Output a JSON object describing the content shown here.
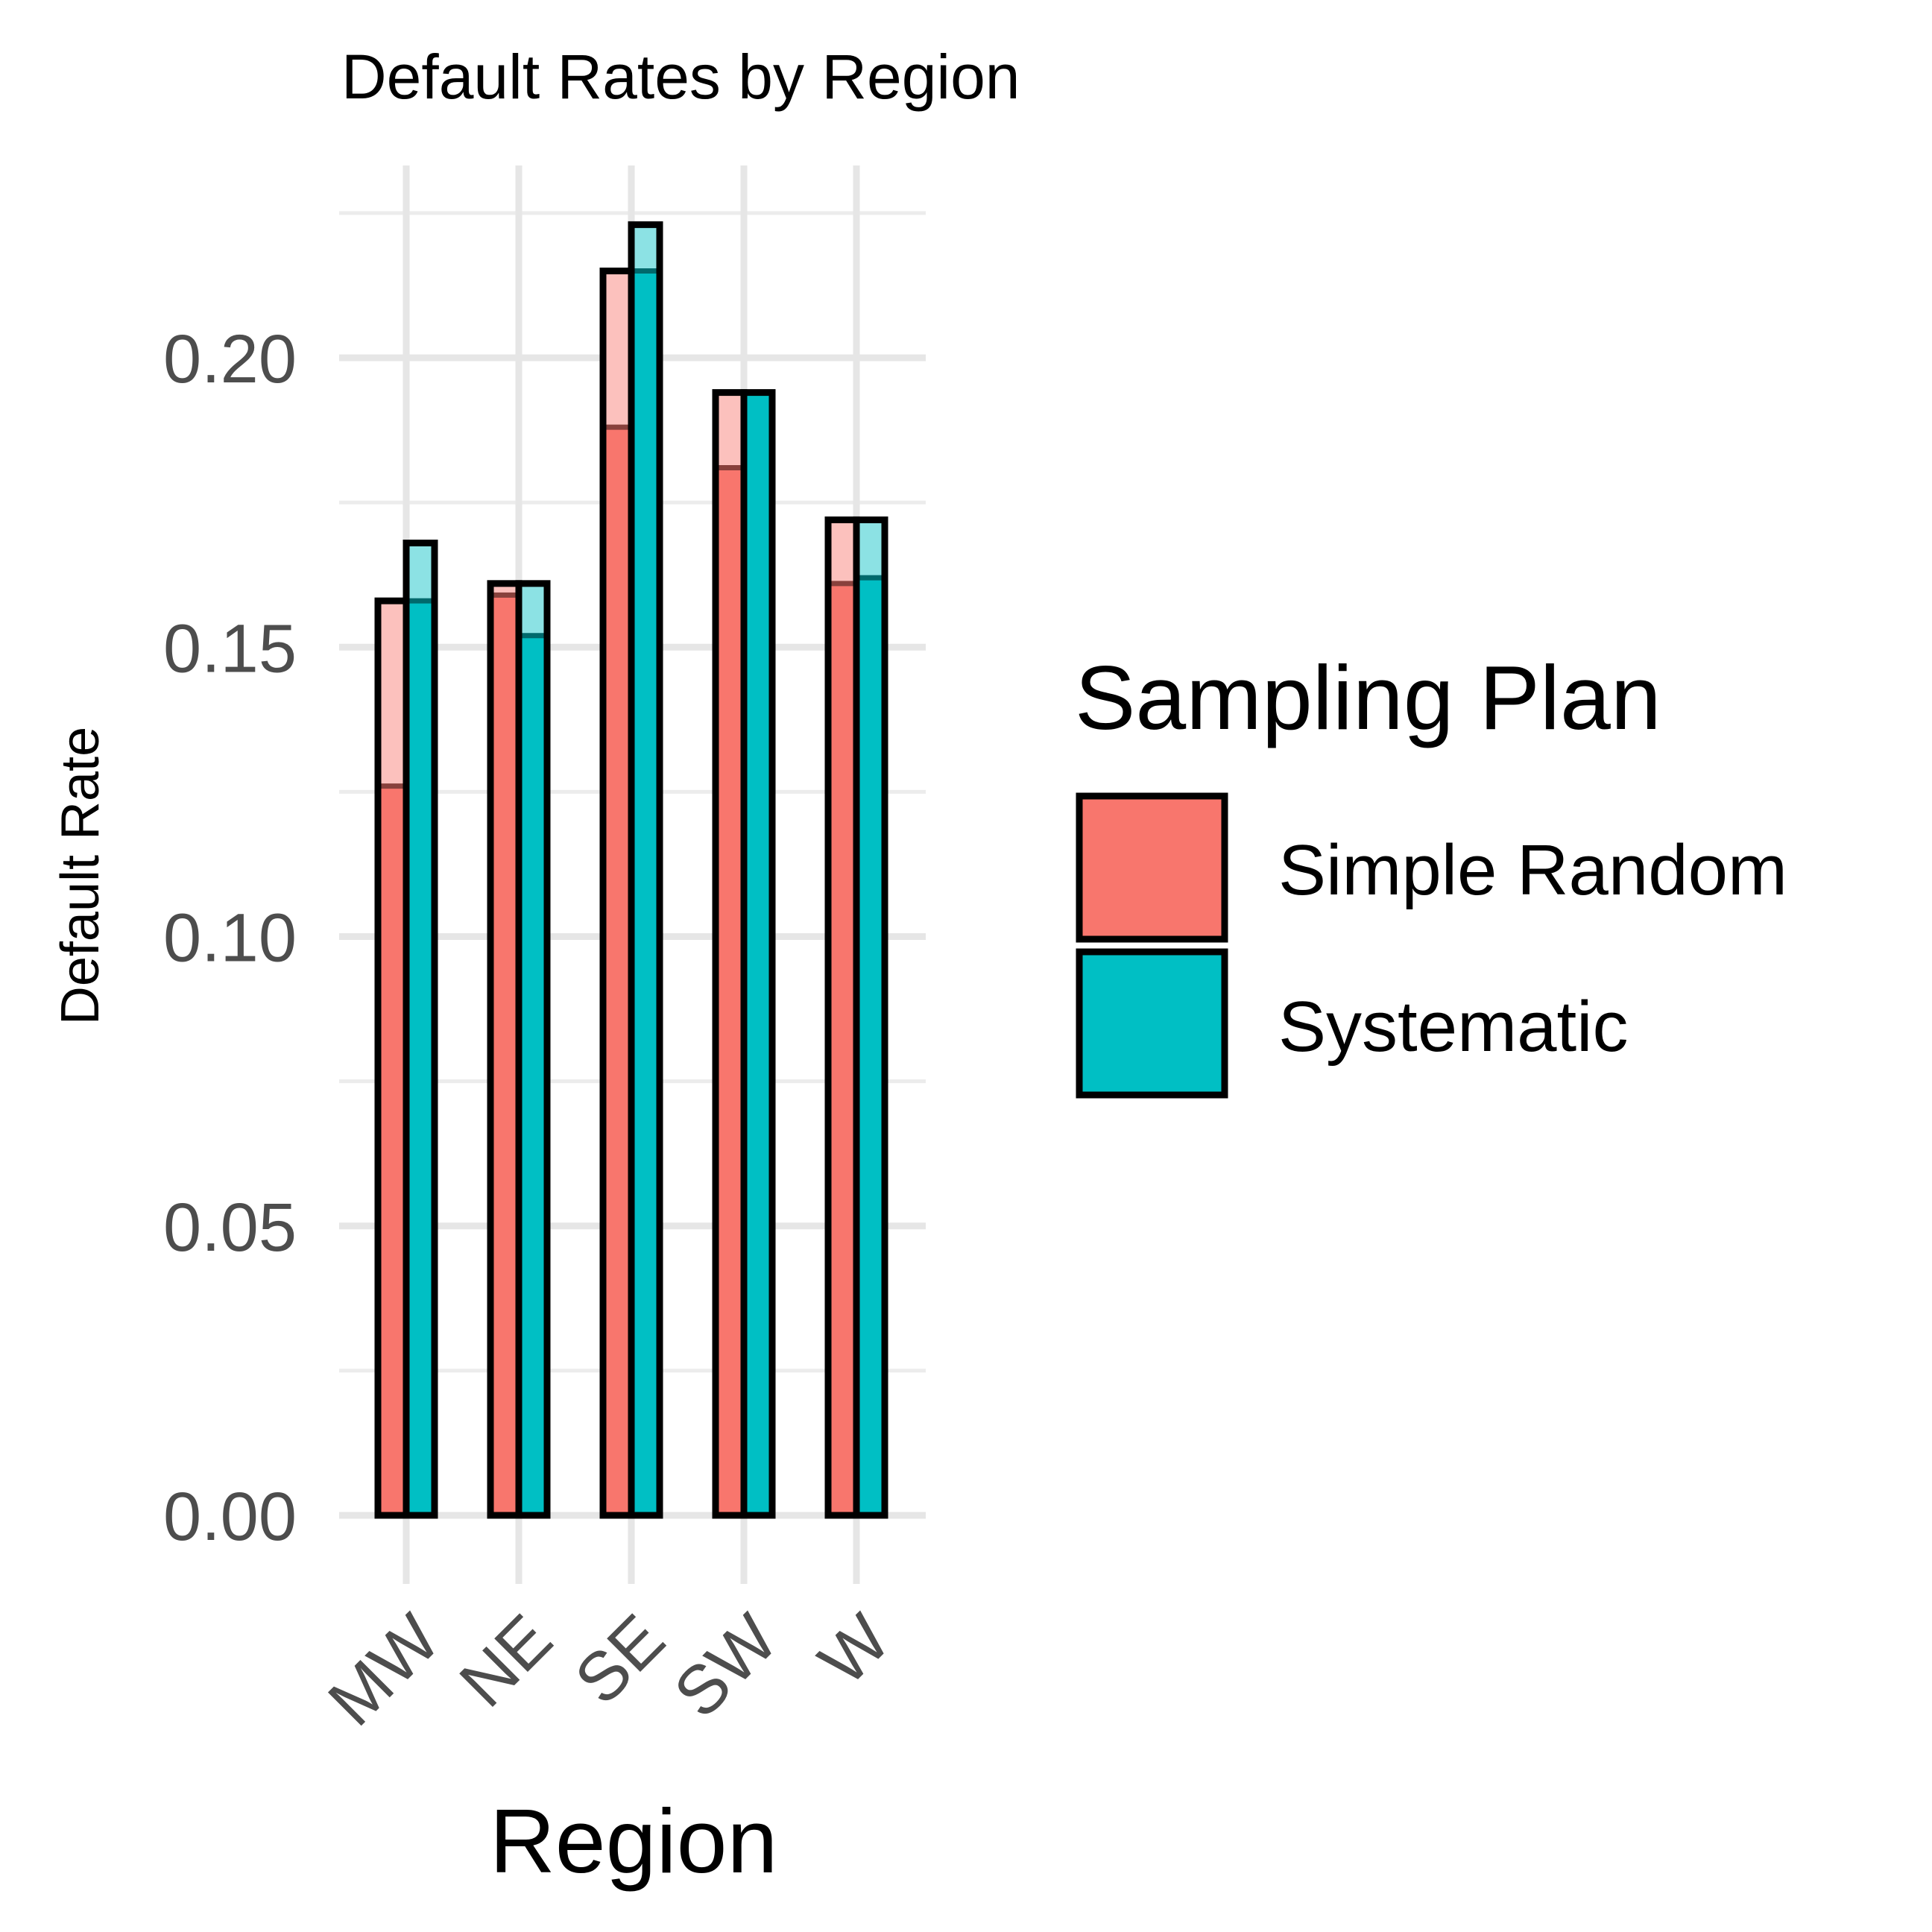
{
  "chart_data": {
    "type": "bar",
    "title": "Default Rates by Region",
    "xlabel": "Region",
    "ylabel": "Default Rate",
    "categories": [
      "MW",
      "NE",
      "SE",
      "SW",
      "W"
    ],
    "ylim": [
      0,
      0.2295
    ],
    "yticks": [
      0.0,
      0.05,
      0.1,
      0.15,
      0.2
    ],
    "ytick_labels": [
      "0.00",
      "0.05",
      "0.10",
      "0.15",
      "0.20"
    ],
    "grid": true,
    "legend": {
      "title": "Sampling Plan",
      "position": "right"
    },
    "series": [
      {
        "name": "Simple Random",
        "color": "#F8766D",
        "values": [
          0.158,
          0.161,
          0.215,
          0.194,
          0.172
        ],
        "inner_values": [
          0.126,
          0.159,
          0.188,
          0.181,
          0.161
        ]
      },
      {
        "name": "Systematic",
        "color": "#00BFC4",
        "values": [
          0.168,
          0.161,
          0.223,
          0.194,
          0.172
        ],
        "inner_values": [
          0.158,
          0.152,
          0.215,
          0.194,
          0.162
        ]
      }
    ]
  }
}
